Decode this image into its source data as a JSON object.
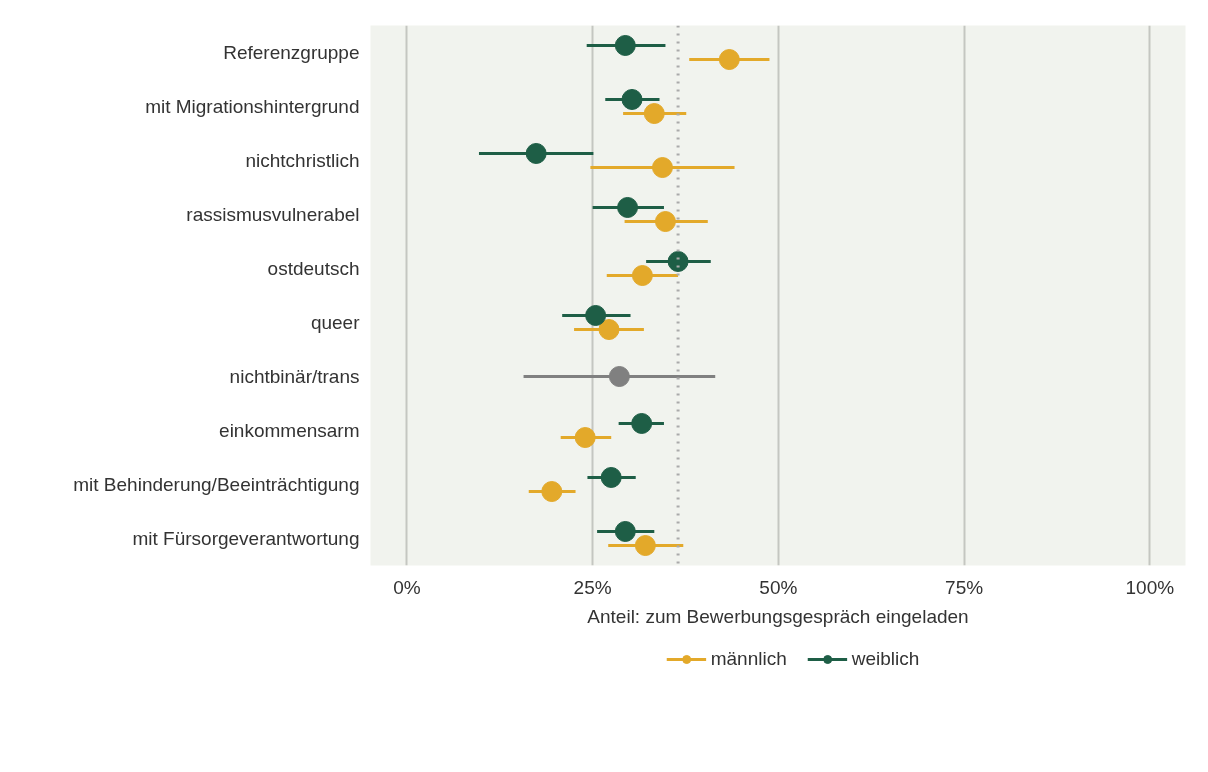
{
  "chart_data": {
    "type": "scatter",
    "xlabel": "Anteil: zum Bewerbungsgespräch eingeladen",
    "categories": [
      "Referenzgruppe",
      "mit Migrationshintergrund",
      "nichtchristlich",
      "rassismusvulnerabel",
      "ostdeutsch",
      "queer",
      "nichtbinär/trans",
      "einkommensarm",
      "mit Behinderung/Beeinträchtigung",
      "mit Fürsorgeverantwortung"
    ],
    "series": [
      {
        "name": "männlich",
        "color": "#e3a92a",
        "values": [
          43.4,
          33.3,
          34.4,
          34.8,
          31.7,
          27.2,
          null,
          24.0,
          19.5,
          32.1
        ],
        "errors": [
          [
            38.0,
            48.8
          ],
          [
            29.1,
            37.6
          ],
          [
            24.7,
            44.1
          ],
          [
            29.3,
            40.5
          ],
          [
            26.9,
            36.5
          ],
          [
            22.5,
            31.9
          ],
          null,
          [
            20.7,
            27.5
          ],
          [
            16.4,
            22.7
          ],
          [
            27.1,
            37.2
          ]
        ]
      },
      {
        "name": "weiblich",
        "color": "#1e5e46",
        "values": [
          29.4,
          30.3,
          17.4,
          29.7,
          36.5,
          25.4,
          null,
          31.6,
          27.5,
          29.4
        ],
        "errors": [
          [
            24.2,
            34.8
          ],
          [
            26.7,
            34.0
          ],
          [
            9.7,
            25.1
          ],
          [
            25.0,
            34.6
          ],
          [
            32.2,
            40.9
          ],
          [
            20.9,
            30.1
          ],
          null,
          [
            28.5,
            34.6
          ],
          [
            24.3,
            30.8
          ],
          [
            25.6,
            33.3
          ]
        ]
      },
      {
        "color": "#808080",
        "values": [
          null,
          null,
          null,
          null,
          null,
          null,
          28.6,
          null,
          null,
          null
        ],
        "errors": [
          null,
          null,
          null,
          null,
          null,
          null,
          [
            15.7,
            41.5
          ],
          null,
          null,
          null
        ]
      }
    ],
    "xlim": [
      -4.9,
      104.8
    ],
    "xticks": [
      {
        "value": 0,
        "label": "0%"
      },
      {
        "value": 25,
        "label": "25%"
      },
      {
        "value": 50,
        "label": "50%"
      },
      {
        "value": 75,
        "label": "75%"
      },
      {
        "value": 100,
        "label": "100%"
      }
    ],
    "ref_lines": [
      {
        "axis": "x",
        "value": 36.5,
        "color": "#aaaaaa",
        "line_style": "dotted"
      }
    ],
    "grid": "x",
    "legend": "bottom",
    "marker": "circle",
    "orientation": "horizontal"
  }
}
